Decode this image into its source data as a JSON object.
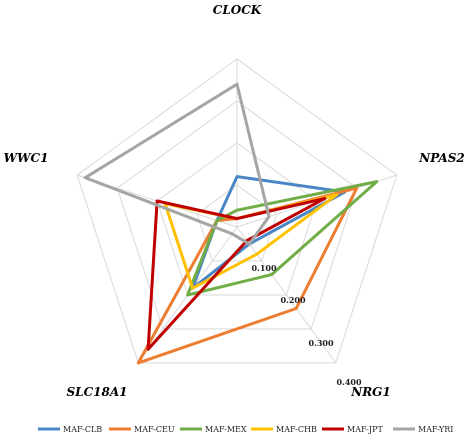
{
  "chart_data": {
    "type": "radar",
    "axes": [
      "CLOCK",
      "NPAS2",
      "NRG1",
      "SLC18A1",
      "WWC1"
    ],
    "range": [
      0,
      0.4
    ],
    "ticks": [
      "0.100",
      "0.200",
      "0.300",
      "0.400"
    ],
    "grid": true,
    "legend_position": "bottom",
    "series": [
      {
        "name": "MAF-CLB",
        "color": "#4A86C5",
        "values": [
          0.12,
          0.27,
          0.05,
          0.18,
          0.05
        ]
      },
      {
        "name": "MAF-CEU",
        "color": "#ED7D31",
        "values": [
          0.02,
          0.3,
          0.24,
          0.4,
          0.05
        ]
      },
      {
        "name": "MAF-MEX",
        "color": "#70AD47",
        "values": [
          0.04,
          0.35,
          0.14,
          0.2,
          0.05
        ]
      },
      {
        "name": "MAF-CHB",
        "color": "#FFC000",
        "values": [
          0.02,
          0.25,
          0.08,
          0.18,
          0.18
        ]
      },
      {
        "name": "MAF-JPT",
        "color": "#C00000",
        "values": [
          0.02,
          0.22,
          0.04,
          0.36,
          0.2
        ]
      },
      {
        "name": "MAF-YRI",
        "color": "#A5A5A5",
        "values": [
          0.34,
          0.08,
          0.05,
          0.02,
          0.38
        ]
      }
    ]
  }
}
